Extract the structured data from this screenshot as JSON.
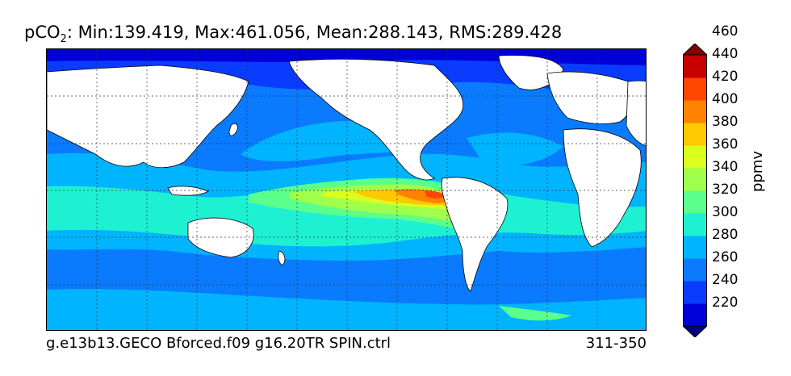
{
  "title": {
    "prefix": "pCO",
    "subscript": "2",
    "rest": ": Min:139.419, Max:461.056, Mean:288.143, RMS:289.428"
  },
  "footer": {
    "case_name": "g.e13b13.GECO Bforced.f09 g16.20TR SPIN.ctrl",
    "year_range": "311-350"
  },
  "colorbar": {
    "label": "ppmv",
    "ticks": [
      "220",
      "240",
      "260",
      "280",
      "300",
      "320",
      "340",
      "360",
      "380",
      "400",
      "420",
      "440",
      "460"
    ],
    "colors": [
      "#000080",
      "#0000d8",
      "#0a3cff",
      "#0a7bff",
      "#00b4ff",
      "#1ef0d2",
      "#5aff8c",
      "#a0ff4a",
      "#d8ff1e",
      "#ffc800",
      "#ff8200",
      "#ff4600",
      "#c80000",
      "#800000"
    ],
    "extend": "both"
  },
  "map": {
    "projection": "cylindrical-equidistant",
    "land_color": "#ffffff",
    "grid": "dotted"
  }
}
